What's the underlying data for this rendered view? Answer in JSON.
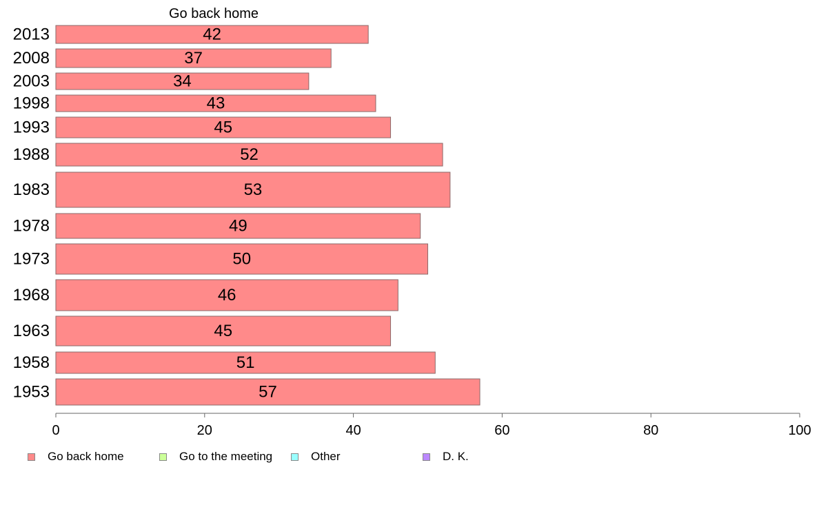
{
  "chart_data": {
    "type": "bar",
    "orientation": "horizontal",
    "series_title": "Go back home",
    "categories": [
      "2013",
      "2008",
      "2003",
      "1998",
      "1993",
      "1988",
      "1983",
      "1978",
      "1973",
      "1968",
      "1963",
      "1958",
      "1953"
    ],
    "series": [
      {
        "name": "Go back home",
        "color": "#ff8a8a",
        "values": [
          42,
          37,
          34,
          43,
          45,
          52,
          53,
          49,
          50,
          46,
          45,
          51,
          57
        ]
      }
    ],
    "xlim": [
      0,
      100
    ],
    "xticks": [
      "0",
      "20",
      "40",
      "60",
      "80",
      "100"
    ],
    "grid": false,
    "legend_position": "bottom"
  },
  "legend": [
    {
      "label": "Go back home",
      "color": "#ff8a8a"
    },
    {
      "label": "Go to the meeting",
      "color": "#ccff99"
    },
    {
      "label": "Other",
      "color": "#99ffff"
    },
    {
      "label": "D. K.",
      "color": "#bb88ff"
    }
  ]
}
